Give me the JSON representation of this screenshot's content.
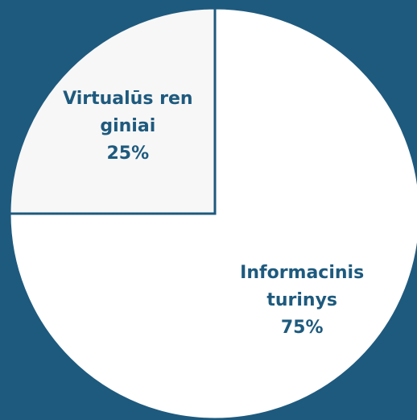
{
  "chart_data": {
    "type": "pie",
    "categories": [
      "Informacinis turinys",
      "Virtualūs renginiai"
    ],
    "values": [
      75,
      25
    ],
    "value_labels": [
      "75%",
      "25%"
    ],
    "colors": [
      "#ffffff",
      "#f7f7f7"
    ]
  }
}
